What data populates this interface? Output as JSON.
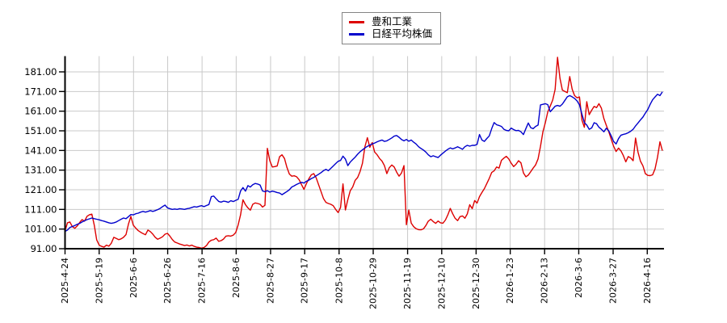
{
  "chart_data": {
    "type": "line",
    "title": "",
    "xlabel": "",
    "ylabel": "",
    "grid": true,
    "legend_position": "top-center",
    "y_ticks": [
      91,
      101,
      111,
      121,
      131,
      141,
      151,
      161,
      171,
      181
    ],
    "ylim": [
      91,
      189.5
    ],
    "x_tick_labels": [
      "2025-4-24",
      "2025-5-19",
      "2025-6-6",
      "2025-6-26",
      "2025-7-16",
      "2025-8-6",
      "2025-8-27",
      "2025-9-17",
      "2025-10-8",
      "2025-10-29",
      "2025-11-19",
      "2025-12-10",
      "2025-12-30",
      "2026-1-23",
      "2026-2-13",
      "2026-3-6",
      "2026-3-27",
      "2026-4-16"
    ],
    "x_tick_days": [
      0,
      14,
      28.1,
      42.1,
      56.2,
      70.2,
      84.3,
      98.3,
      112.4,
      126.4,
      140.5,
      154.5,
      168.6,
      182.6,
      196.7,
      210.7,
      224.8,
      238.8
    ],
    "x_total_days": 245,
    "colors": {
      "grid": "#c9c9c9",
      "axis": "#000000",
      "background": "#ffffff",
      "legend_border": "#848484"
    },
    "legend": [
      {
        "label": "豊和工業",
        "color": "#dd0000"
      },
      {
        "label": "日経平均株価",
        "color": "#0000cc"
      }
    ],
    "series": [
      {
        "name": "豊和工業",
        "color": "#dd0000",
        "values": [
          100,
          104.2,
          104.6,
          102.2,
          101.4,
          102.6,
          104.3,
          105.8,
          105.0,
          107.5,
          108.3,
          108.6,
          103.0,
          95.5,
          92.8,
          92.2,
          91.8,
          92.8,
          92.3,
          93.8,
          96.8,
          96.2,
          95.6,
          96.0,
          96.8,
          98.2,
          103.5,
          107.4,
          103.0,
          101.5,
          100.2,
          99.4,
          98.7,
          98.1,
          100.5,
          99.7,
          98.4,
          96.8,
          95.8,
          96.4,
          97.1,
          98.4,
          98.8,
          97.4,
          95.7,
          94.4,
          93.9,
          93.4,
          93.0,
          92.6,
          92.9,
          92.4,
          92.8,
          92.2,
          91.8,
          91.6,
          91.3,
          91.6,
          92.6,
          94.4,
          95.3,
          95.6,
          96.4,
          94.8,
          95.1,
          95.9,
          97.4,
          97.6,
          97.4,
          97.9,
          99.2,
          103.1,
          108.2,
          115.9,
          113.4,
          111.8,
          110.6,
          113.6,
          114.3,
          114.0,
          113.6,
          112.2,
          113.1,
          142.1,
          135.8,
          132.6,
          132.8,
          133.1,
          137.8,
          138.8,
          136.9,
          132.4,
          129.0,
          127.9,
          128.1,
          127.6,
          126.1,
          123.6,
          121.2,
          124.1,
          126.6,
          128.6,
          129.2,
          127.1,
          123.6,
          120.1,
          116.6,
          114.6,
          114.0,
          113.6,
          112.9,
          111.0,
          109.4,
          112.0,
          124.0,
          110.7,
          116.0,
          120.5,
          122.5,
          125.8,
          127.2,
          130.2,
          134.5,
          143.0,
          147.5,
          142.6,
          145.0,
          140.2,
          138.8,
          136.9,
          135.6,
          133.3,
          129.2,
          132.2,
          133.6,
          132.6,
          130.0,
          127.9,
          129.5,
          133.3,
          103.2,
          110.7,
          104.0,
          102.2,
          101.2,
          100.7,
          100.6,
          101.1,
          102.8,
          105.0,
          106.0,
          104.8,
          103.9,
          105.1,
          104.2,
          104.0,
          105.6,
          108.2,
          111.5,
          108.8,
          106.5,
          105.3,
          107.3,
          107.7,
          106.5,
          108.7,
          113.4,
          111.4,
          115.5,
          114.2,
          117.5,
          119.6,
          121.6,
          124.2,
          126.8,
          129.8,
          130.6,
          132.6,
          132.0,
          136.0,
          137.1,
          138.0,
          136.7,
          134.5,
          132.8,
          134.0,
          135.8,
          134.7,
          129.6,
          127.6,
          128.5,
          130.2,
          132.0,
          133.6,
          136.7,
          143.1,
          150.5,
          155.1,
          160.6,
          163.6,
          166.6,
          172.0,
          188.4,
          177.8,
          171.7,
          171.0,
          170.4,
          178.6,
          172.2,
          168.9,
          167.8,
          168.2,
          156.5,
          152.8,
          165.8,
          159.2,
          161.5,
          163.4,
          162.8,
          164.8,
          162.5,
          157.2,
          153.8,
          150.6,
          146.8,
          143.2,
          140.5,
          142.2,
          140.8,
          138.4,
          135.2,
          137.9,
          137.2,
          135.8,
          147.3,
          140.2,
          135.6,
          133.2,
          129.2,
          128.3,
          128.2,
          128.6,
          131.6,
          137.6,
          145.4,
          140.9
        ]
      },
      {
        "name": "日経平均株価",
        "color": "#0000cc",
        "values": [
          99.8,
          100.5,
          101.8,
          102.3,
          102.8,
          103.4,
          103.9,
          104.6,
          105.2,
          105.8,
          106.2,
          106.6,
          106.3,
          106.0,
          105.7,
          105.3,
          105.0,
          104.6,
          104.2,
          103.9,
          104.2,
          104.6,
          105.3,
          106.0,
          106.6,
          106.3,
          107.3,
          108.4,
          108.2,
          108.8,
          109.1,
          109.6,
          110.0,
          109.6,
          110.0,
          110.4,
          110.0,
          110.4,
          110.9,
          111.5,
          112.4,
          113.2,
          111.8,
          111.4,
          111.0,
          111.2,
          111.0,
          111.4,
          111.2,
          111.0,
          111.4,
          111.6,
          112.0,
          112.4,
          112.2,
          112.6,
          112.9,
          112.4,
          113.0,
          113.5,
          117.5,
          117.8,
          116.4,
          115.1,
          114.7,
          115.2,
          115.0,
          114.6,
          115.4,
          115.0,
          115.6,
          116.1,
          120.4,
          122.1,
          120.3,
          123.1,
          122.4,
          123.6,
          124.2,
          123.9,
          123.4,
          120.4,
          120.0,
          120.5,
          119.8,
          120.3,
          120.0,
          119.6,
          119.3,
          118.5,
          119.3,
          120.1,
          121.0,
          122.4,
          123.0,
          123.7,
          124.3,
          124.8,
          124.4,
          125.3,
          125.9,
          126.7,
          127.3,
          128.1,
          128.9,
          129.7,
          130.7,
          131.4,
          130.7,
          131.9,
          133.1,
          134.3,
          135.5,
          135.9,
          138.1,
          136.6,
          133.3,
          135.1,
          136.4,
          137.6,
          139.1,
          140.3,
          141.3,
          142.3,
          143.1,
          143.7,
          144.3,
          144.8,
          145.4,
          145.9,
          146.3,
          145.6,
          145.9,
          146.6,
          147.4,
          148.3,
          148.6,
          147.7,
          146.6,
          145.9,
          146.6,
          145.7,
          146.3,
          145.2,
          144.3,
          142.9,
          142.0,
          141.2,
          140.2,
          138.8,
          137.8,
          138.3,
          137.8,
          137.4,
          138.6,
          139.6,
          140.7,
          141.6,
          142.3,
          141.8,
          142.3,
          142.9,
          142.3,
          141.6,
          142.9,
          143.6,
          143.2,
          143.6,
          143.6,
          144.1,
          149.1,
          146.3,
          145.6,
          147.1,
          148.4,
          152.1,
          155.2,
          154.1,
          153.7,
          153.2,
          151.8,
          151.2,
          151.0,
          152.4,
          151.6,
          151.1,
          151.2,
          150.5,
          149.1,
          152.1,
          155.0,
          152.6,
          152.1,
          153.2,
          153.9,
          164.2,
          164.5,
          164.8,
          164.3,
          160.7,
          162.1,
          163.5,
          163.9,
          163.5,
          164.6,
          166.5,
          168.3,
          168.9,
          168.3,
          167.5,
          166.2,
          164.2,
          159.5,
          155.2,
          153.9,
          151.8,
          152.5,
          155.1,
          154.6,
          152.8,
          151.8,
          150.5,
          152.3,
          151.0,
          148.5,
          145.6,
          144.3,
          147.0,
          148.8,
          149.2,
          149.5,
          150.0,
          150.8,
          151.8,
          153.5,
          155.0,
          156.5,
          158.0,
          160.0,
          161.8,
          164.5,
          166.8,
          168.2,
          169.6,
          168.9,
          170.8
        ]
      }
    ]
  }
}
